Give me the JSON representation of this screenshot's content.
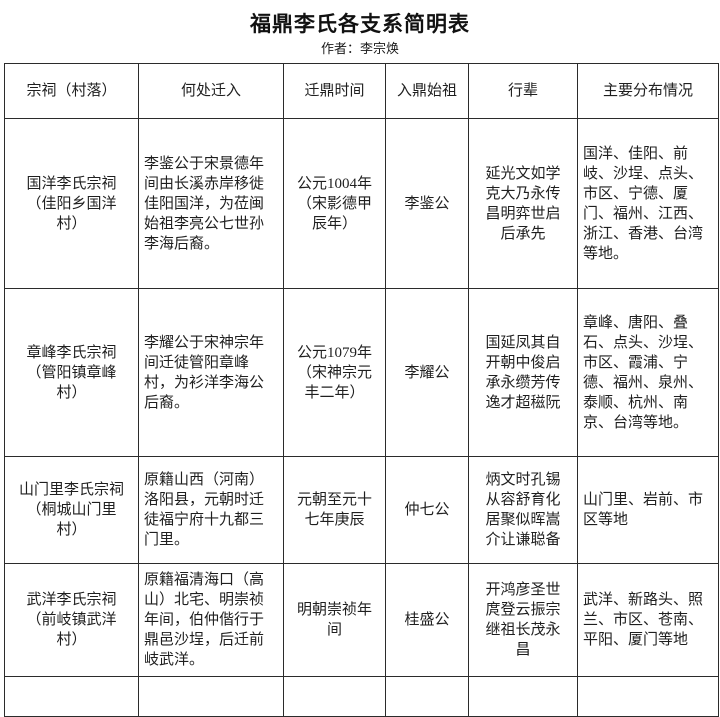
{
  "title": "福鼎李氏各支系简明表",
  "author_line": "作者：李宗焕",
  "table": {
    "headers": [
      "宗祠（村落）",
      "何处迁入",
      "迁鼎时间",
      "入鼎始祖",
      "行辈",
      "主要分布情况"
    ],
    "rows": [
      {
        "clan_hall": "国洋李氏宗祠\n（佳阳乡国洋\n村）",
        "origin": "李鉴公于宋景德年间由长溪赤岸移徙佳阳国洋，为莅闽始祖李亮公七世孙李海后裔。",
        "migration_time": "公元1004年\n（宋影德甲\n辰年）",
        "founder": "李鉴公",
        "generation_poem": "延光文如学\n克大乃永传\n昌明弈世启\n后承先",
        "distribution": "国洋、佳阳、前岐、沙埕、点头、市区、宁德、厦门、福州、江西、浙江、香港、台湾等地。"
      },
      {
        "clan_hall": "章峰李氏宗祠\n（管阳镇章峰\n村）",
        "origin": "李耀公于宋神宗年间迁徒管阳章峰村，为衫洋李海公后裔。",
        "migration_time": "公元1079年\n（宋神宗元\n丰二年）",
        "founder": "李耀公",
        "generation_poem": "国延凤其自\n开朝中俊启\n承永缵芳传\n逸才超稵阮",
        "distribution": "章峰、唐阳、叠石、点头、沙埕、市区、霞浦、宁德、福州、泉州、泰顺、杭州、南京、台湾等地。"
      },
      {
        "clan_hall": "山门里李氏宗祠\n（桐城山门里\n村）",
        "origin": "原籍山西（河南）洛阳县，元朝时迁徒福宁府十九都三门里。",
        "migration_time": "元朝至元十\n七年庚辰",
        "founder": "仲七公",
        "generation_poem": "炳文时孔锡\n从容舒育化\n居聚似晖嵩\n介让谦聪备",
        "distribution": "山门里、岩前、市区等地"
      },
      {
        "clan_hall": "武洋李氏宗祠\n（前岐镇武洋\n村）",
        "origin": "原籍福清海口（高山）北宅、明崇祯年间，伯仲偕行于鼎邑沙埕，后迁前岐武洋。",
        "migration_time": "明朝崇祯年\n间",
        "founder": "桂盛公",
        "generation_poem": "开鸿彦圣世\n庹登云振宗\n继祖长茂永\n昌",
        "distribution": "武洋、新路头、照兰、市区、苍南、平阳、厦门等地"
      }
    ]
  }
}
